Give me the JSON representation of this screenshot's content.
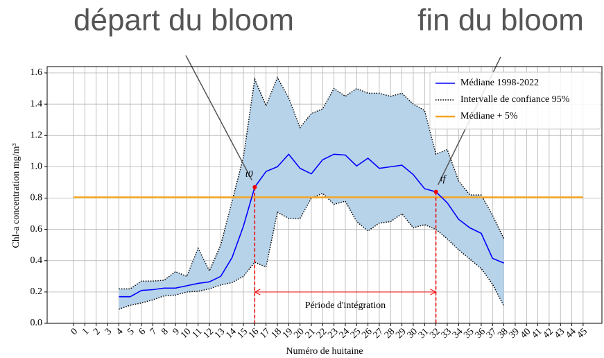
{
  "chart_data": {
    "type": "line",
    "annotations_top": [
      "départ du bloom",
      "fin du bloom"
    ],
    "xlabel": "Numéro de huitaine",
    "ylabel": "Chl-a concentration mg/m³",
    "x": [
      4,
      5,
      6,
      7,
      8,
      9,
      10,
      11,
      12,
      13,
      14,
      15,
      16,
      17,
      18,
      19,
      20,
      21,
      22,
      23,
      24,
      25,
      26,
      27,
      28,
      29,
      30,
      31,
      32,
      33,
      34,
      35,
      36,
      37,
      38
    ],
    "series": [
      {
        "name": "Médiane 1998-2022",
        "color": "#0000ff",
        "values": [
          0.17,
          0.17,
          0.21,
          0.215,
          0.225,
          0.225,
          0.24,
          0.255,
          0.265,
          0.3,
          0.42,
          0.62,
          0.87,
          0.97,
          1.0,
          1.08,
          0.99,
          0.955,
          1.045,
          1.08,
          1.075,
          1.005,
          1.055,
          0.99,
          1.0,
          1.01,
          0.95,
          0.86,
          0.84,
          0.77,
          0.665,
          0.61,
          0.575,
          0.415,
          0.385
        ]
      },
      {
        "name": "Intervalle de confiance 95%",
        "color": "#000000",
        "fill": "#b7d3ea",
        "upper": [
          0.22,
          0.22,
          0.27,
          0.27,
          0.275,
          0.33,
          0.3,
          0.48,
          0.335,
          0.5,
          0.78,
          1.06,
          1.56,
          1.39,
          1.57,
          1.44,
          1.25,
          1.34,
          1.37,
          1.5,
          1.45,
          1.5,
          1.47,
          1.47,
          1.45,
          1.47,
          1.4,
          1.36,
          1.08,
          1.11,
          0.91,
          0.82,
          0.82,
          0.69,
          0.54
        ],
        "lower": [
          0.09,
          0.115,
          0.13,
          0.15,
          0.175,
          0.18,
          0.2,
          0.205,
          0.22,
          0.245,
          0.26,
          0.3,
          0.39,
          0.36,
          0.71,
          0.67,
          0.67,
          0.8,
          0.83,
          0.76,
          0.78,
          0.65,
          0.59,
          0.64,
          0.65,
          0.7,
          0.61,
          0.63,
          0.6,
          0.54,
          0.47,
          0.41,
          0.35,
          0.25,
          0.11
        ]
      },
      {
        "name": "Médiane + 5%",
        "color": "#f5a623",
        "x": [
          0,
          45
        ],
        "values": [
          0.805,
          0.805
        ]
      }
    ],
    "markers": [
      {
        "label": "t0",
        "x": 16
      },
      {
        "label": "tf",
        "x": 32
      }
    ],
    "period": {
      "label": "Période d'intégration",
      "x": [
        16,
        32
      ],
      "y": 0.2
    },
    "xlim": [
      -2.33,
      46.66
    ],
    "ylim": [
      0,
      1.64
    ],
    "xticks": [
      0,
      1,
      2,
      3,
      4,
      5,
      6,
      7,
      8,
      9,
      10,
      11,
      12,
      13,
      14,
      15,
      16,
      17,
      18,
      19,
      20,
      21,
      22,
      23,
      24,
      25,
      26,
      27,
      28,
      29,
      30,
      31,
      32,
      33,
      34,
      35,
      36,
      37,
      38,
      39,
      40,
      41,
      42,
      43,
      44,
      45
    ],
    "yticks": [
      {
        "value": 0,
        "label": "0.0"
      },
      0.2,
      0.4,
      0.6,
      0.8,
      {
        "value": 1,
        "label": "1.0"
      },
      1.2,
      1.4,
      1.6
    ],
    "grid": true,
    "legend": "upper right"
  }
}
